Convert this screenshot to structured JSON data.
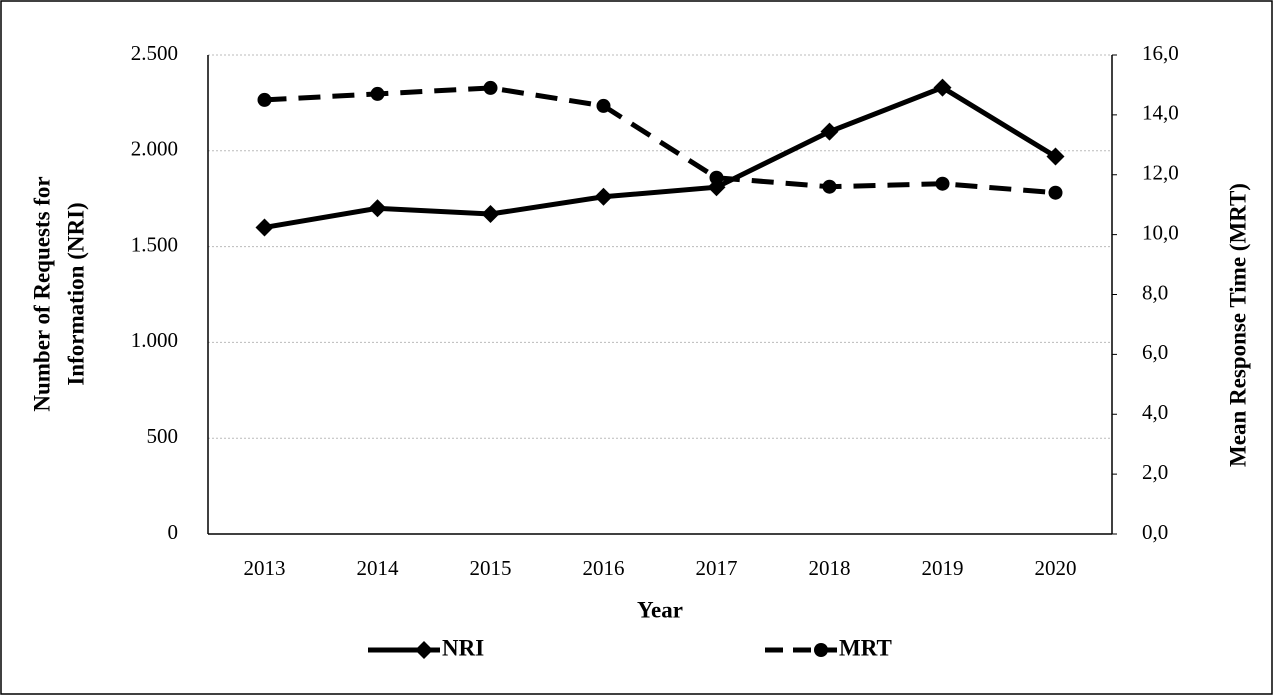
{
  "chart_data": {
    "type": "line",
    "xlabel": "Year",
    "ylabel": [
      "Number of Requests for",
      "Information  (NRI)"
    ],
    "y2label": "Mean Response Time (MRT)",
    "categories": [
      "2013",
      "2014",
      "2015",
      "2016",
      "2017",
      "2018",
      "2019",
      "2020"
    ],
    "series": [
      {
        "name": "NRI",
        "color": "#000000",
        "dash": "solid",
        "marker": "diamond",
        "values": [
          1600,
          1700,
          1670,
          1760,
          1810,
          2100,
          2330,
          1970
        ]
      },
      {
        "name": "MRT",
        "color": "#000000",
        "dash": "dashed",
        "marker": "circle",
        "axis": "y2",
        "values": [
          14.5,
          14.7,
          14.9,
          14.3,
          11.9,
          11.6,
          11.7,
          11.4
        ]
      }
    ],
    "ylim": [
      0,
      2500
    ],
    "yticks": [
      0,
      500,
      {
        "value": 1000,
        "label": "1.000"
      },
      {
        "value": 1500,
        "label": "1.500"
      },
      {
        "value": 2000,
        "label": "2.000"
      },
      {
        "value": 2500,
        "label": "2.500"
      }
    ],
    "y2lim": [
      0,
      16
    ],
    "y2ticks": [
      {
        "value": 0,
        "label": "0,0"
      },
      {
        "value": 2,
        "label": "2,0"
      },
      {
        "value": 4,
        "label": "4,0"
      },
      {
        "value": 6,
        "label": "6,0"
      },
      {
        "value": 8,
        "label": "8,0"
      },
      {
        "value": 10,
        "label": "10,0"
      },
      {
        "value": 12,
        "label": "12,0"
      },
      {
        "value": 14,
        "label": "14,0"
      },
      {
        "value": 16,
        "label": "16,0"
      }
    ],
    "grid": true,
    "legend": "bottom"
  }
}
